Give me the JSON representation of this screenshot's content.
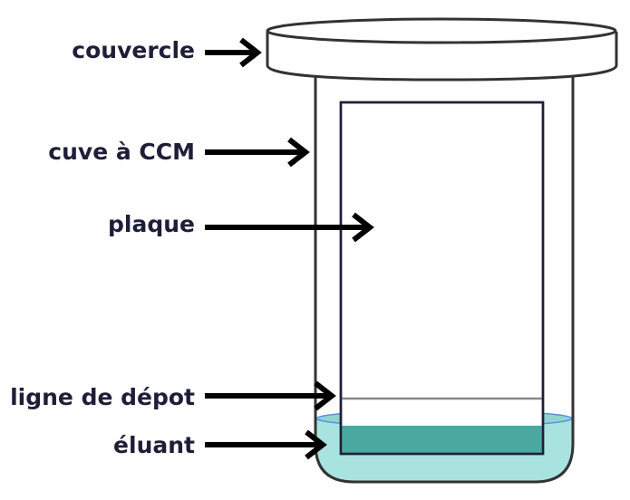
{
  "labels": {
    "lid": "couvercle",
    "tank": "cuve à CCM",
    "plate": "plaque",
    "deposit_line": "ligne de dépot",
    "eluent": "éluant"
  },
  "colors": {
    "label_text": "#1e1e38",
    "arrow": "#000000",
    "outline": "#333333",
    "plate_border": "#1e1e38",
    "eluent_light": "#a8e3e0",
    "eluent_surface": "#8fd3d3",
    "eluent_dark": "#4aa8a0",
    "deposit_line": "#888888"
  }
}
